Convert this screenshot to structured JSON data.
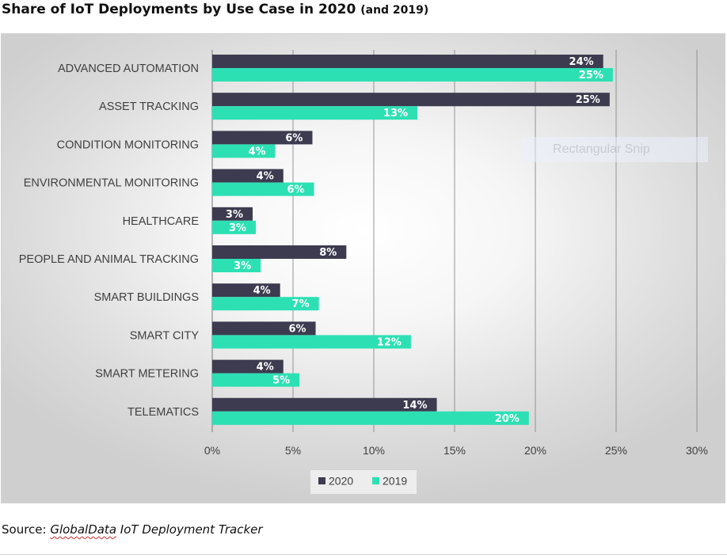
{
  "title": {
    "main": "Share of IoT Deployments by Use Case in 2020",
    "sub": "(and 2019)"
  },
  "watermark": "Rectangular Snip",
  "source": {
    "prefix": "Source: ",
    "name": "GlobalData",
    "rest": " IoT Deployment Tracker"
  },
  "colors": {
    "series_2020": "#3c3b4f",
    "series_2019": "#2de0b4",
    "grid": "#8a8a8a"
  },
  "chart_data": {
    "type": "bar",
    "orientation": "horizontal",
    "categories": [
      "ADVANCED AUTOMATION",
      "ASSET TRACKING",
      "CONDITION MONITORING",
      "ENVIRONMENTAL MONITORING",
      "HEALTHCARE",
      "PEOPLE AND ANIMAL TRACKING",
      "SMART BUILDINGS",
      "SMART CITY",
      "SMART METERING",
      "TELEMATICS"
    ],
    "series": [
      {
        "name": "2020",
        "values": [
          24.2,
          24.6,
          6.2,
          4.4,
          2.5,
          8.3,
          4.2,
          6.4,
          4.4,
          13.9
        ],
        "labels": [
          "24%",
          "25%",
          "6%",
          "4%",
          "3%",
          "8%",
          "4%",
          "6%",
          "4%",
          "14%"
        ]
      },
      {
        "name": "2019",
        "values": [
          24.8,
          12.7,
          3.9,
          6.3,
          2.7,
          3.0,
          6.6,
          12.3,
          5.4,
          19.6
        ],
        "labels": [
          "25%",
          "13%",
          "4%",
          "6%",
          "3%",
          "3%",
          "7%",
          "12%",
          "5%",
          "20%"
        ]
      }
    ],
    "xlim": [
      0,
      30
    ],
    "ticks": [
      0,
      5,
      10,
      15,
      20,
      25,
      30
    ],
    "tick_labels": [
      "0%",
      "5%",
      "10%",
      "15%",
      "20%",
      "25%",
      "30%"
    ],
    "grid": true,
    "legend_position": "bottom"
  }
}
